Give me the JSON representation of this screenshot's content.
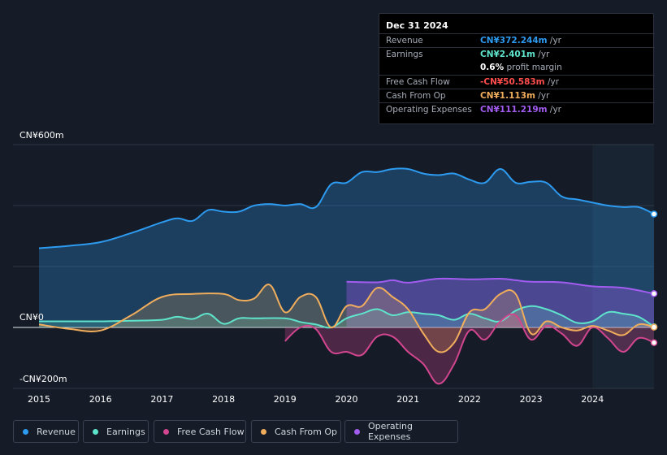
{
  "tooltip": {
    "date": "Dec 31 2024",
    "rows": [
      {
        "label": "Revenue",
        "value": "CN¥372.244m",
        "unit": "/yr",
        "color": "#2d9bf0"
      },
      {
        "label": "Earnings",
        "value": "CN¥2.401m",
        "unit": "/yr",
        "color": "#5fe4cc"
      },
      {
        "label": "",
        "value": "0.6%",
        "unit": "profit margin",
        "color": "#ffffff"
      },
      {
        "label": "Free Cash Flow",
        "value": "-CN¥50.583m",
        "unit": "/yr",
        "color": "#ff4d4d"
      },
      {
        "label": "Cash From Op",
        "value": "CN¥1.113m",
        "unit": "/yr",
        "color": "#f0ad5c"
      },
      {
        "label": "Operating Expenses",
        "value": "CN¥111.219m",
        "unit": "/yr",
        "color": "#a25cf0"
      }
    ]
  },
  "legend": [
    {
      "label": "Revenue",
      "color": "#2d9bf0"
    },
    {
      "label": "Earnings",
      "color": "#5fe4cc"
    },
    {
      "label": "Free Cash Flow",
      "color": "#d1468f"
    },
    {
      "label": "Cash From Op",
      "color": "#f0ad5c"
    },
    {
      "label": "Operating Expenses",
      "color": "#a25cf0"
    }
  ],
  "chart_data": {
    "type": "area",
    "title": "",
    "xlabel": "",
    "ylabel": "",
    "unit": "CN¥ millions",
    "ylim": [
      -200,
      600
    ],
    "y_tick_labels": [
      "CN¥600m",
      "CN¥0",
      "-CN¥200m"
    ],
    "x_tick_labels": [
      "2015",
      "2016",
      "2017",
      "2018",
      "2019",
      "2020",
      "2021",
      "2022",
      "2023",
      "2024"
    ],
    "highlight_from": 2024.0,
    "series": [
      {
        "name": "Revenue",
        "color": "#2d9bf0",
        "x": [
          2015,
          2015.5,
          2016,
          2016.5,
          2017,
          2017.25,
          2017.5,
          2017.75,
          2018,
          2018.25,
          2018.5,
          2018.75,
          2019,
          2019.25,
          2019.5,
          2019.75,
          2020,
          2020.25,
          2020.5,
          2020.75,
          2021,
          2021.25,
          2021.5,
          2021.75,
          2022,
          2022.25,
          2022.5,
          2022.75,
          2023,
          2023.25,
          2023.5,
          2023.75,
          2024,
          2024.25,
          2024.5,
          2024.75,
          2025
        ],
        "values": [
          260,
          268,
          280,
          310,
          345,
          358,
          350,
          385,
          380,
          380,
          400,
          405,
          400,
          405,
          395,
          470,
          475,
          510,
          510,
          520,
          520,
          505,
          500,
          505,
          485,
          475,
          520,
          475,
          478,
          475,
          430,
          420,
          410,
          400,
          395,
          395,
          372
        ]
      },
      {
        "name": "Operating Expenses",
        "color": "#a25cf0",
        "x": [
          2020,
          2020.5,
          2020.75,
          2021,
          2021.5,
          2022,
          2022.5,
          2022.75,
          2023,
          2023.5,
          2024,
          2024.5,
          2025
        ],
        "values": [
          150,
          148,
          155,
          147,
          160,
          158,
          160,
          155,
          150,
          148,
          135,
          130,
          111
        ]
      },
      {
        "name": "Earnings",
        "color": "#5fe4cc",
        "x": [
          2015,
          2016,
          2016.5,
          2017,
          2017.25,
          2017.5,
          2017.75,
          2018,
          2018.25,
          2018.5,
          2019,
          2019.25,
          2019.5,
          2019.75,
          2020,
          2020.25,
          2020.5,
          2020.75,
          2021,
          2021.25,
          2021.5,
          2021.75,
          2022,
          2022.25,
          2022.5,
          2022.75,
          2023,
          2023.25,
          2023.5,
          2023.75,
          2024,
          2024.25,
          2024.5,
          2024.75,
          2025
        ],
        "values": [
          20,
          20,
          22,
          25,
          35,
          28,
          45,
          12,
          30,
          30,
          30,
          18,
          10,
          0,
          30,
          45,
          60,
          40,
          50,
          45,
          40,
          25,
          45,
          30,
          20,
          55,
          70,
          60,
          40,
          15,
          20,
          50,
          45,
          35,
          2
        ]
      },
      {
        "name": "Free Cash Flow",
        "color": "#d1468f",
        "x": [
          2019,
          2019.25,
          2019.5,
          2019.75,
          2020,
          2020.25,
          2020.5,
          2020.75,
          2021,
          2021.25,
          2021.5,
          2021.75,
          2022,
          2022.25,
          2022.5,
          2022.75,
          2023,
          2023.25,
          2023.5,
          2023.75,
          2024,
          2024.25,
          2024.5,
          2024.75,
          2025
        ],
        "values": [
          -45,
          0,
          -5,
          -80,
          -80,
          -90,
          -30,
          -30,
          -80,
          -120,
          -185,
          -120,
          -10,
          -40,
          20,
          40,
          -40,
          5,
          -20,
          -60,
          0,
          -35,
          -80,
          -35,
          -50
        ]
      },
      {
        "name": "Cash From Op",
        "color": "#f0ad5c",
        "x": [
          2015,
          2015.5,
          2016,
          2016.5,
          2017,
          2017.5,
          2018,
          2018.25,
          2018.5,
          2018.75,
          2019,
          2019.25,
          2019.5,
          2019.75,
          2020,
          2020.25,
          2020.5,
          2020.75,
          2021,
          2021.25,
          2021.5,
          2021.75,
          2022,
          2022.25,
          2022.5,
          2022.75,
          2023,
          2023.25,
          2023.5,
          2023.75,
          2024,
          2024.25,
          2024.5,
          2024.75,
          2025
        ],
        "values": [
          10,
          -5,
          -10,
          40,
          100,
          110,
          110,
          90,
          95,
          140,
          50,
          100,
          100,
          0,
          70,
          70,
          130,
          100,
          60,
          -20,
          -80,
          -50,
          50,
          60,
          110,
          110,
          -20,
          20,
          0,
          -10,
          5,
          -10,
          -25,
          10,
          1
        ]
      }
    ]
  }
}
